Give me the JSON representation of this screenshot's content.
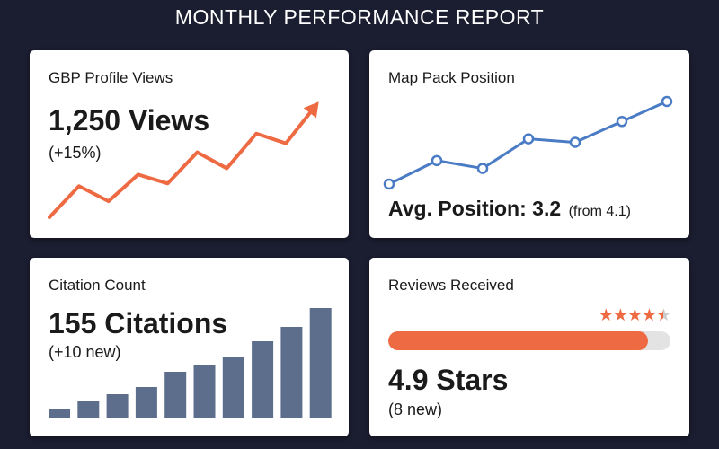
{
  "report": {
    "title": "MONTHLY PERFORMANCE REPORT"
  },
  "colors": {
    "background": "#1b1d30",
    "card": "#ffffff",
    "accent_orange": "#ee6a43",
    "line_blue": "#4a7cc5",
    "bar_slate": "#5d6e8c"
  },
  "cards": {
    "profile_views": {
      "label": "GBP Profile Views",
      "value": "1,250 Views",
      "change": "(+15%)",
      "trend_icon": "arrow-up-right-icon"
    },
    "map_pack": {
      "label": "Map Pack Position",
      "avg_text": "Avg. Position: 3.2",
      "from_text": "(from 4.1)"
    },
    "citations": {
      "label": "Citation Count",
      "value": "155 Citations",
      "change": "(+10 new)"
    },
    "reviews": {
      "label": "Reviews Received",
      "value": "4.9 Stars",
      "change": "(8 new)",
      "rating_fraction": 0.92,
      "stars": {
        "full": 4,
        "half": 1
      }
    }
  },
  "chart_data": [
    {
      "type": "line",
      "description_ref": "GBP Profile Views sparkline",
      "values": [
        0,
        35,
        18,
        48,
        38,
        73,
        55,
        94,
        83,
        125
      ],
      "trend": "up"
    },
    {
      "type": "line",
      "description_ref": "Map Pack Position sparkline",
      "values": [
        0,
        27,
        18,
        52,
        48,
        72,
        95
      ]
    },
    {
      "type": "bar",
      "description_ref": "Citation Count bars",
      "values": [
        11,
        19,
        27,
        35,
        52,
        60,
        69,
        86,
        102,
        123
      ]
    }
  ]
}
